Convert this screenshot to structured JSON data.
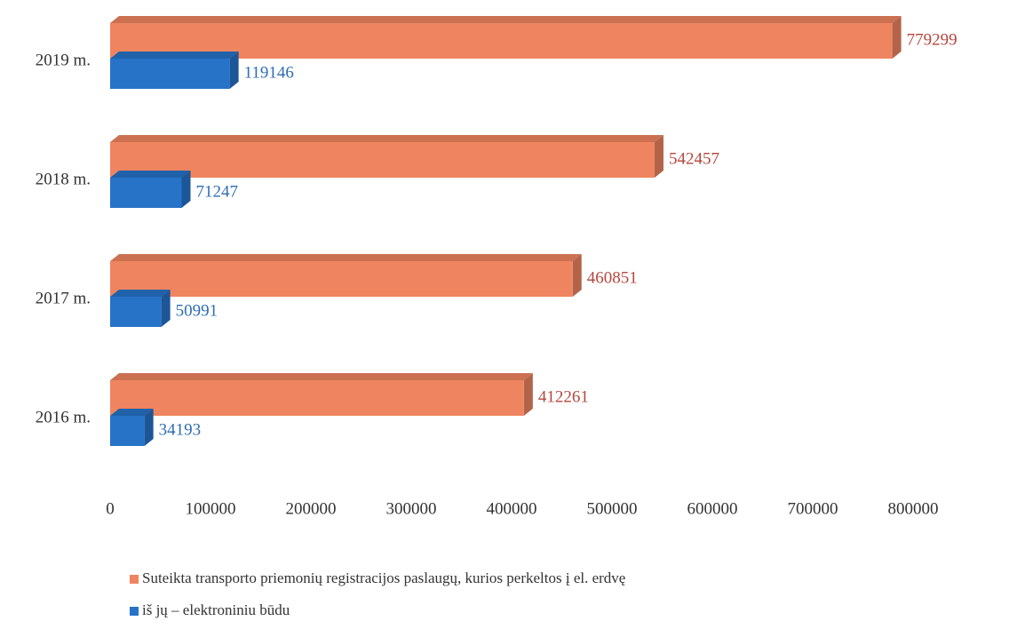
{
  "chart_data": {
    "type": "bar3d_horizontal",
    "categories": [
      "2019 m.",
      "2018 m.",
      "2017 m.",
      "2016 m."
    ],
    "series": [
      {
        "name": "Suteikta transporto priemonių registracijos paslaugų, kurios perkeltos į el. erdvę",
        "color": "#ef8560",
        "label_color": "#b5463c",
        "values": [
          779299,
          542457,
          460851,
          412261
        ]
      },
      {
        "name": "iš jų – elektroniniu būdu",
        "color": "#2673c8",
        "label_color": "#2e6db4",
        "values": [
          119146,
          71247,
          50991,
          34193
        ]
      }
    ],
    "xlim": [
      0,
      800000
    ],
    "xticks": [
      0,
      100000,
      200000,
      300000,
      400000,
      500000,
      600000,
      700000,
      800000
    ],
    "legend": "bottom"
  }
}
